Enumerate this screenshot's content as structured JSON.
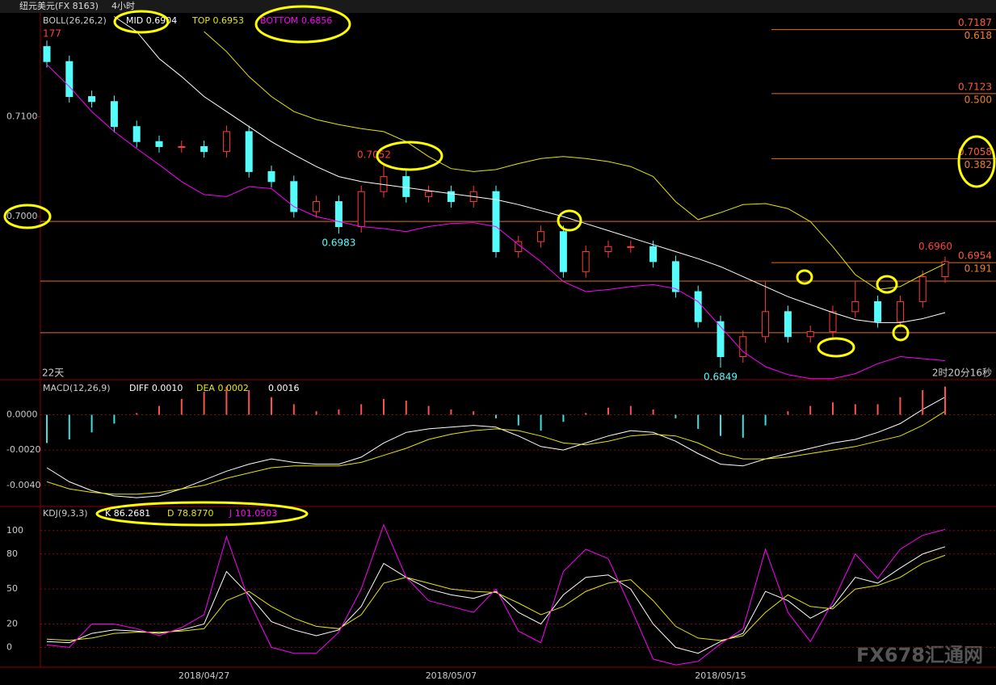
{
  "header": {
    "symbol": "纽元美元(FX 8163)",
    "period": "4小时"
  },
  "watermark": "FX678汇通网",
  "chart_data": [
    {
      "type": "candlestick",
      "title": "BOLL(26,26,2)",
      "corner_label": "177",
      "bars_label": "22天",
      "countdown": "2时20分16秒",
      "categories": [
        null,
        null,
        null,
        null,
        null,
        null,
        null,
        "2018/04/27",
        null,
        null,
        null,
        null,
        null,
        null,
        null,
        null,
        null,
        null,
        "2018/05/07",
        null,
        null,
        null,
        null,
        null,
        null,
        null,
        null,
        null,
        null,
        null,
        "2018/05/15",
        null,
        null,
        null,
        null,
        null,
        null,
        null,
        null,
        null,
        null
      ],
      "open": [
        0.717,
        0.7155,
        0.712,
        0.7115,
        0.709,
        0.7075,
        0.707,
        0.707,
        0.7065,
        0.7085,
        0.7045,
        0.7035,
        0.7005,
        0.7015,
        0.699,
        0.7025,
        0.704,
        0.702,
        0.7025,
        0.7015,
        0.7025,
        0.6965,
        0.6975,
        0.6985,
        0.6945,
        0.6965,
        0.697,
        0.697,
        0.6955,
        0.6925,
        0.6895,
        0.686,
        0.688,
        0.6905,
        0.688,
        0.6885,
        0.6905,
        0.6915,
        0.6895,
        0.6915,
        0.694
      ],
      "high": [
        0.7176,
        0.7161,
        0.7126,
        0.7121,
        0.7096,
        0.7081,
        0.7076,
        0.7076,
        0.7091,
        0.7091,
        0.7051,
        0.7041,
        0.7021,
        0.7021,
        0.7031,
        0.7052,
        0.7046,
        0.7031,
        0.7031,
        0.7031,
        0.7031,
        0.6981,
        0.6991,
        0.6991,
        0.6971,
        0.6976,
        0.6976,
        0.6976,
        0.6961,
        0.6931,
        0.6901,
        0.6886,
        0.6935,
        0.6911,
        0.6891,
        0.6911,
        0.6935,
        0.6921,
        0.6921,
        0.6946,
        0.696
      ],
      "low": [
        0.7149,
        0.7114,
        0.7109,
        0.7084,
        0.7069,
        0.7064,
        0.7064,
        0.7059,
        0.7059,
        0.7039,
        0.7029,
        0.6999,
        0.6999,
        0.6983,
        0.6984,
        0.7019,
        0.7014,
        0.7014,
        0.7009,
        0.7009,
        0.6959,
        0.6959,
        0.6969,
        0.6939,
        0.6939,
        0.6959,
        0.6964,
        0.6949,
        0.6919,
        0.6889,
        0.6849,
        0.6854,
        0.6874,
        0.6874,
        0.6874,
        0.6879,
        0.6899,
        0.6889,
        0.6889,
        0.6909,
        0.6934
      ],
      "close": [
        0.7155,
        0.712,
        0.7115,
        0.709,
        0.7075,
        0.707,
        0.707,
        0.7065,
        0.7085,
        0.7045,
        0.7035,
        0.7005,
        0.7015,
        0.699,
        0.7025,
        0.704,
        0.702,
        0.7025,
        0.7015,
        0.7025,
        0.6965,
        0.6975,
        0.6985,
        0.6945,
        0.6965,
        0.697,
        0.697,
        0.6955,
        0.6925,
        0.6895,
        0.686,
        0.688,
        0.6905,
        0.688,
        0.6885,
        0.6905,
        0.6915,
        0.6895,
        0.6915,
        0.694,
        0.6955
      ],
      "up_color": "#ff3c3c",
      "down_color": "#54fcfc",
      "series": [
        {
          "name": "MID 0.6904",
          "color": "#ffffff",
          "values": [
            null,
            null,
            null,
            0.72,
            0.7185,
            0.7158,
            0.714,
            0.712,
            0.7105,
            0.709,
            0.7075,
            0.7062,
            0.705,
            0.704,
            0.7035,
            0.7032,
            0.7029,
            0.7026,
            0.7023,
            0.702,
            0.7017,
            0.7012,
            0.7006,
            0.7,
            0.6993,
            0.6986,
            0.6979,
            0.6972,
            0.6965,
            0.6958,
            0.695,
            0.694,
            0.693,
            0.692,
            0.6912,
            0.6904,
            0.6897,
            0.6894,
            0.6894,
            0.6898,
            0.6904
          ]
        },
        {
          "name": "TOP 0.6953",
          "color": "#e6e600",
          "values": [
            null,
            null,
            null,
            null,
            null,
            null,
            null,
            0.7185,
            0.7165,
            0.714,
            0.712,
            0.7105,
            0.7097,
            0.7092,
            0.7088,
            0.7085,
            0.7075,
            0.706,
            0.7048,
            0.7045,
            0.7047,
            0.7053,
            0.7058,
            0.706,
            0.7058,
            0.7055,
            0.705,
            0.704,
            0.7015,
            0.6997,
            0.7004,
            0.7012,
            0.7013,
            0.7008,
            0.6995,
            0.697,
            0.6942,
            0.6927,
            0.693,
            0.6942,
            0.6953
          ]
        },
        {
          "name": "BOTTOM 0.6856",
          "color": "#ff00ff",
          "values": [
            0.7152,
            0.713,
            0.7105,
            0.7085,
            0.7068,
            0.7052,
            0.7035,
            0.7022,
            0.702,
            0.703,
            0.7028,
            0.701,
            0.7,
            0.6995,
            0.699,
            0.6988,
            0.6985,
            0.699,
            0.6993,
            0.6994,
            0.699,
            0.6972,
            0.6955,
            0.6935,
            0.6925,
            0.6927,
            0.693,
            0.6932,
            0.6928,
            0.6915,
            0.689,
            0.6865,
            0.685,
            0.6842,
            0.6838,
            0.6838,
            0.6843,
            0.6853,
            0.686,
            0.6858,
            0.6856
          ]
        }
      ],
      "ylim": [
        0.6837,
        0.7202
      ],
      "yticks": [
        {
          "value": 0.71,
          "label": "0.7100"
        },
        {
          "value": 0.7,
          "label": "0.7000"
        }
      ],
      "grid": false,
      "hlines": [
        0.69952,
        0.69355,
        0.68839
      ],
      "hline_color": "#e07020",
      "levels": [
        {
          "value": 0.7187,
          "label": "0.7187",
          "ratio": "0.618"
        },
        {
          "value": 0.7123,
          "label": "0.7123",
          "ratio": "0.500"
        },
        {
          "value": 0.7058,
          "label": "0.7058",
          "ratio": "0.382"
        },
        {
          "value": 0.6954,
          "label": "0.6954",
          "ratio": "0.191"
        }
      ],
      "extreme_labels": [
        {
          "index": 15,
          "value": 0.7052,
          "label": "0.7052"
        },
        {
          "index": 13,
          "value": 0.6983,
          "label": "0.6983"
        },
        {
          "index": 30,
          "value": 0.6849,
          "label": "0.6849"
        },
        {
          "index": 40,
          "value": 0.696,
          "label": "0.6960"
        }
      ]
    },
    {
      "type": "macd",
      "title": "MACD(12,26,9)",
      "up_color": "#ff5050",
      "down_color": "#3ce0e0",
      "series": [
        {
          "name": "DIFF 0.0010",
          "color": "#ffffff",
          "values": [
            -0.003,
            -0.0038,
            -0.0043,
            -0.0046,
            -0.0047,
            -0.0046,
            -0.0042,
            -0.0037,
            -0.0032,
            -0.0028,
            -0.0025,
            -0.0027,
            -0.0028,
            -0.0028,
            -0.0024,
            -0.0016,
            -0.001,
            -0.0008,
            -0.0007,
            -0.0006,
            -0.0007,
            -0.0012,
            -0.0018,
            -0.002,
            -0.0016,
            -0.0012,
            -0.0009,
            -0.001,
            -0.0015,
            -0.0022,
            -0.0028,
            -0.0029,
            -0.0025,
            -0.0022,
            -0.0019,
            -0.0016,
            -0.0014,
            -0.001,
            -0.0005,
            0.0003,
            0.001
          ]
        },
        {
          "name": "DEA 0.0002",
          "color": "#e6e600",
          "values": [
            -0.0038,
            -0.0042,
            -0.0044,
            -0.0045,
            -0.0045,
            -0.0044,
            -0.0042,
            -0.004,
            -0.0036,
            -0.0033,
            -0.003,
            -0.0029,
            -0.0029,
            -0.0029,
            -0.0027,
            -0.0023,
            -0.0019,
            -0.0014,
            -0.0011,
            -0.0009,
            -0.0008,
            -0.0009,
            -0.0012,
            -0.0016,
            -0.0017,
            -0.0015,
            -0.0012,
            -0.0011,
            -0.0012,
            -0.0016,
            -0.0022,
            -0.0025,
            -0.0025,
            -0.0024,
            -0.0022,
            -0.002,
            -0.0018,
            -0.0015,
            -0.0012,
            -0.0006,
            0.0002
          ]
        },
        {
          "name": "0.0016",
          "color": "#ffffff",
          "kind": "histogram",
          "values": [
            -0.0016,
            -0.0014,
            -0.001,
            -0.0005,
            0.0001,
            0.0005,
            0.0009,
            0.0013,
            0.0016,
            0.0014,
            0.001,
            0.0006,
            0.0002,
            0.0003,
            0.0006,
            0.0009,
            0.0008,
            0.0005,
            0.0003,
            0.0002,
            -0.0002,
            -0.0006,
            -0.0009,
            -0.0004,
            0.0001,
            0.0004,
            0.0005,
            0.0003,
            -0.0002,
            -0.0008,
            -0.0012,
            -0.0013,
            -0.0006,
            0.0002,
            0.0005,
            0.0007,
            0.0006,
            0.0006,
            0.001,
            0.0014,
            0.0016
          ]
        }
      ],
      "ylim": [
        -0.0052,
        0.0019
      ],
      "yticks": [
        {
          "value": 0,
          "label": "0.0000"
        },
        {
          "value": -0.002,
          "label": "-0.0020"
        },
        {
          "value": -0.004,
          "label": "-0.0040"
        }
      ],
      "grid": true
    },
    {
      "type": "line",
      "title": "KDJ(9,3,3)",
      "series": [
        {
          "name": "K 86.2681",
          "color": "#ffffff",
          "values": [
            5,
            4,
            12,
            15,
            14,
            12,
            15,
            20,
            65,
            45,
            22,
            15,
            10,
            15,
            35,
            72,
            60,
            50,
            45,
            42,
            48,
            30,
            20,
            45,
            60,
            62,
            50,
            20,
            0,
            -5,
            5,
            12,
            48,
            40,
            25,
            35,
            60,
            55,
            68,
            80,
            86.2681
          ]
        },
        {
          "name": "D 78.8770",
          "color": "#e6e600",
          "values": [
            7,
            6,
            8,
            12,
            13,
            13,
            14,
            16,
            40,
            48,
            35,
            25,
            18,
            16,
            28,
            55,
            60,
            55,
            50,
            48,
            47,
            38,
            28,
            35,
            48,
            55,
            58,
            40,
            18,
            8,
            6,
            10,
            30,
            45,
            35,
            33,
            50,
            53,
            60,
            72,
            78.877
          ]
        },
        {
          "name": "J 101.0503",
          "color": "#ff00ff",
          "values": [
            2,
            0,
            20,
            20,
            16,
            10,
            17,
            28,
            95,
            40,
            0,
            -5,
            -5,
            13,
            50,
            105,
            60,
            40,
            35,
            30,
            50,
            14,
            4,
            65,
            84,
            76,
            34,
            -10,
            -15,
            -12,
            3,
            16,
            84,
            30,
            5,
            39,
            80,
            59,
            84,
            96,
            101.0503
          ]
        }
      ],
      "ylim": [
        -17,
        120
      ],
      "yticks": [
        100,
        80,
        50,
        20,
        0
      ],
      "grid": true
    }
  ]
}
